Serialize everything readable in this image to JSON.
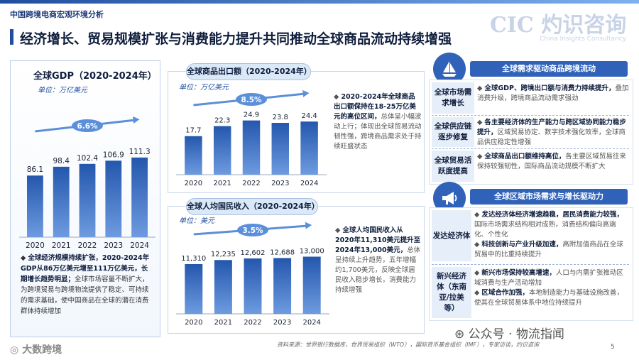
{
  "header": {
    "section_tag": "中国跨境电商宏观环境分析",
    "title": "经济增长、贸易规模扩张与消费能力提升共同推动全球商品流动持续增强",
    "logo_text": "CIC 灼识咨询",
    "logo_sub": "China Insights Consultancy"
  },
  "gdp_panel": {
    "title": "全球GDP（2020-2024年）",
    "unit": "单位：万亿美元",
    "cagr": "6.6%",
    "note_bold": "全球经济规模持续扩张，2020-2024年GDP从86万亿美元增至111万亿美元，长期增长趋势明显；",
    "note_text": "全球市场容量不断扩大，为跨境贸易与跨境物流提供了稳定、可持续的需求基础，使中国商品在全球的潜在消费群体持续增加"
  },
  "exports_panel": {
    "title": "全球商品出口额（2020-2024年）",
    "unit": "单位：万亿美元",
    "cagr": "8.5%",
    "note_bold": "2020-2024年全球商品出口额保持在18-25万亿美元的高位区间，",
    "note_text": "总体呈小幅波动上行；体现出全球贸易流动韧性强，跨境商品需求处于持续旺盛状态"
  },
  "income_panel": {
    "title": "全球人均国民收入（2020-2024年）",
    "unit": "单位：美元",
    "cagr": "3.5%",
    "note_bold": "全球人均国民收入从2020年11,310美元提升至2024年13,000美元，",
    "note_text": "总体呈持续上升趋势，五年增幅约1,700美元，反映全球居民收入稳步增长，消费能力持续增强"
  },
  "chart_data": [
    {
      "type": "bar",
      "categories": [
        "2020",
        "2021",
        "2022",
        "2023",
        "2024"
      ],
      "values": [
        86.1,
        98.4,
        102.4,
        106.9,
        111.3
      ],
      "labels": [
        "86.1",
        "98.4",
        "102.4",
        "106.9",
        "111.3"
      ],
      "title": "全球GDP（2020-2024年）",
      "ylim": [
        0,
        130
      ]
    },
    {
      "type": "bar",
      "categories": [
        "2020",
        "2021",
        "2022",
        "2023",
        "2024"
      ],
      "values": [
        17.7,
        22.3,
        24.9,
        23.8,
        24.4
      ],
      "labels": [
        "17.7",
        "22.3",
        "24.9",
        "23.8",
        "24.4"
      ],
      "title": "全球商品出口额（2020-2024年）",
      "ylim": [
        0,
        30
      ]
    },
    {
      "type": "bar",
      "categories": [
        "2020",
        "2021",
        "2022",
        "2023",
        "2024"
      ],
      "values": [
        11310,
        12235,
        12602,
        12688,
        13000
      ],
      "labels": [
        "11,310",
        "12,235",
        "12,602",
        "12,688",
        "13,000"
      ],
      "title": "全球人均国民收入（2020-2024年）",
      "ylim": [
        0,
        15500
      ]
    }
  ],
  "right_top": {
    "head": "全球需求驱动商品跨境流动",
    "rows": [
      {
        "label": "全球市场需求增长",
        "bold": "全球GDP、跨境出口额与消费力持续提升，",
        "text": "叠加消费升级，跨境商品流动需求强劲"
      },
      {
        "label": "全球供应链逐步修复",
        "bold": "各主要经济体的生产能力与跨区域协同能力稳步提升，",
        "text": "区域贸易协定、数字技术强化效率，全球商品供应稳定性增强"
      },
      {
        "label": "全球贸易活跃度提高",
        "bold": "全球商品出口额维持高位，",
        "text": "各主要区域贸易往来保持较强韧性，国际商品流动规模不断扩大"
      }
    ]
  },
  "right_bottom": {
    "head": "全球区域市场需求与增长驱动力",
    "rows": [
      {
        "label": "发达经济体",
        "items": [
          {
            "bold": "发达经济体经济增速趋稳，居民消费能力较强，",
            "text": "国际市场需求结构相对成熟，消费结构偏向高端化、个性化"
          },
          {
            "bold": "科技创新与产业升级加速，",
            "text": "高附加值商品在全球贸易中的比重持续提升"
          }
        ]
      },
      {
        "label": "新兴经济体（东南亚/拉美等）",
        "items": [
          {
            "bold": "新兴市场保持较高增速，",
            "text": "人口与内需扩张推动区域消费与生产活动增加"
          },
          {
            "bold": "区域合作加强，",
            "text": "本地制造能力与基础设施改善，使其在全球贸易体系中地位持续提升"
          }
        ]
      }
    ]
  },
  "footer": {
    "source": "资料来源：世界银行数据库，世界贸易组织（WTO），国际货币基金组织（IMF），专家访谈，灼识咨询",
    "page": "5",
    "wechat": "公众号 · 物流指闻",
    "brand": "大数跨境"
  },
  "colors": {
    "accent": "#2f62b8",
    "bar_dark": "#2457ad",
    "bar_light": "#6e9be0",
    "cagr": "#5b8fd9"
  }
}
